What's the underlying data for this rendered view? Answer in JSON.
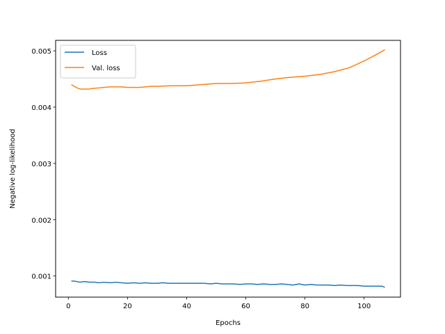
{
  "chart_data": {
    "type": "line",
    "xlabel": "Epochs",
    "ylabel": "Negative log-likelihood",
    "xlim": [
      -4.3,
      112.3
    ],
    "ylim": [
      0.000625,
      0.005186
    ],
    "xticks": [
      0,
      20,
      40,
      60,
      80,
      100
    ],
    "yticks": [
      0.001,
      0.002,
      0.003,
      0.004,
      0.005
    ],
    "ytick_labels": [
      "0.001",
      "0.002",
      "0.003",
      "0.004",
      "0.005"
    ],
    "grid": false,
    "legend_position": "top-left",
    "series": [
      {
        "name": "Loss",
        "color": "#1f77b4",
        "x": [
          1,
          2,
          3,
          4,
          5,
          6,
          7,
          8,
          9,
          10,
          12,
          14,
          16,
          18,
          20,
          22,
          24,
          26,
          28,
          30,
          32,
          34,
          36,
          38,
          40,
          42,
          44,
          46,
          48,
          50,
          52,
          54,
          56,
          58,
          60,
          62,
          64,
          66,
          68,
          70,
          72,
          74,
          76,
          78,
          80,
          82,
          84,
          86,
          88,
          90,
          92,
          94,
          96,
          98,
          100,
          102,
          104,
          106,
          107
        ],
        "values": [
          0.00091,
          0.00091,
          0.0009,
          0.00089,
          0.0009,
          0.0009,
          0.00089,
          0.00089,
          0.00089,
          0.00088,
          0.00089,
          0.00088,
          0.00089,
          0.00088,
          0.00087,
          0.00088,
          0.00087,
          0.00088,
          0.00087,
          0.00087,
          0.00088,
          0.00087,
          0.00087,
          0.00087,
          0.00087,
          0.00087,
          0.00087,
          0.00087,
          0.00086,
          0.00087,
          0.00086,
          0.00086,
          0.00086,
          0.00085,
          0.00086,
          0.00086,
          0.00085,
          0.00086,
          0.00085,
          0.00085,
          0.00086,
          0.00085,
          0.00084,
          0.00086,
          0.00084,
          0.00085,
          0.00084,
          0.00084,
          0.00084,
          0.00083,
          0.00084,
          0.00083,
          0.00083,
          0.00083,
          0.00082,
          0.00082,
          0.00082,
          0.00082,
          0.0008
        ]
      },
      {
        "name": "Val. loss",
        "color": "#ff7f0e",
        "x": [
          1,
          2,
          3,
          4,
          5,
          6,
          7,
          8,
          10,
          12,
          14,
          16,
          18,
          20,
          22,
          24,
          26,
          28,
          30,
          35,
          40,
          45,
          50,
          55,
          60,
          65,
          70,
          75,
          80,
          85,
          90,
          95,
          100,
          104,
          107
        ],
        "values": [
          0.0044,
          0.00437,
          0.00434,
          0.00432,
          0.00432,
          0.00432,
          0.00432,
          0.00433,
          0.00434,
          0.00435,
          0.00436,
          0.00436,
          0.00436,
          0.00435,
          0.00435,
          0.00435,
          0.00436,
          0.00437,
          0.00437,
          0.00438,
          0.00438,
          0.0044,
          0.00442,
          0.00442,
          0.00443,
          0.00446,
          0.0045,
          0.00453,
          0.00455,
          0.00458,
          0.00463,
          0.0047,
          0.00482,
          0.00493,
          0.00502
        ]
      }
    ]
  }
}
